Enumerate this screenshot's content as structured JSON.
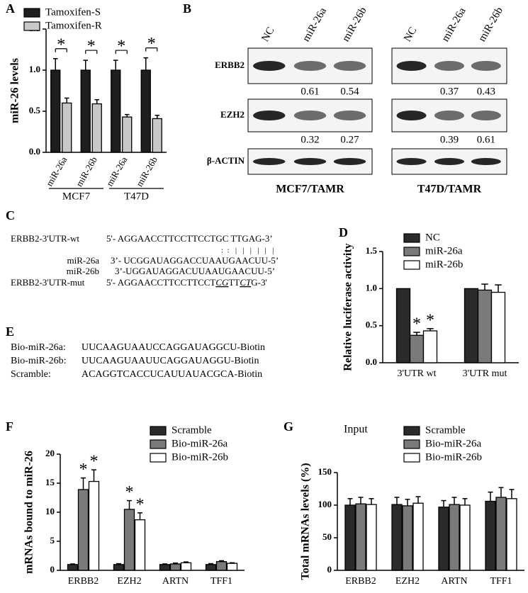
{
  "panel_labels": [
    "A",
    "B",
    "C",
    "D",
    "E",
    "F",
    "G"
  ],
  "chart_data": [
    {
      "type": "bar",
      "ylabel": "miR-26 levels",
      "categories": [
        "miR-26a",
        "miR-26b",
        "miR-26a",
        "miR-26b"
      ],
      "groups": [
        "MCF7",
        "T47D"
      ],
      "ylim": [
        0,
        1.5
      ],
      "yticks": [
        {
          "value": 0,
          "label": "0.0"
        },
        {
          "value": 0.5,
          "label": "0.5"
        },
        {
          "value": 1,
          "label": "1.0"
        },
        {
          "value": 1.5,
          "label": "1.5"
        }
      ],
      "series": [
        {
          "name": "Tamoxifen-S",
          "color": "#1e1e1e",
          "values": [
            1.0,
            1.0,
            1.0,
            1.0
          ],
          "errors": [
            0.14,
            0.12,
            0.12,
            0.15
          ]
        },
        {
          "name": "Tamoxifen-R",
          "color": "#c8c8c8",
          "values": [
            0.6,
            0.59,
            0.43,
            0.41
          ],
          "errors": [
            0.06,
            0.05,
            0.03,
            0.04
          ]
        }
      ],
      "brackets": [
        "*",
        "*",
        "*",
        "*"
      ]
    },
    {
      "type": "bar",
      "ylabel": "Relative luciferase activity",
      "categories": [
        "3'UTR wt",
        "3'UTR mut"
      ],
      "ylim": [
        0,
        1.5
      ],
      "yticks": [
        {
          "value": 0,
          "label": "0.0"
        },
        {
          "value": 0.5,
          "label": "0.5"
        },
        {
          "value": 1,
          "label": "1.0"
        },
        {
          "value": 1.5,
          "label": "1.5"
        }
      ],
      "series": [
        {
          "name": "NC",
          "color": "#2b2b2b",
          "values": [
            1.0,
            1.0
          ],
          "errors": [
            0,
            0
          ]
        },
        {
          "name": "miR-26a",
          "color": "#7a7a7a",
          "values": [
            0.37,
            0.98
          ],
          "errors": [
            0.04,
            0.08
          ],
          "annotations": [
            "*",
            null
          ]
        },
        {
          "name": "miR-26b",
          "color": "#ffffff",
          "values": [
            0.43,
            0.95
          ],
          "errors": [
            0.03,
            0.1
          ],
          "annotations": [
            "*",
            null
          ]
        }
      ]
    },
    {
      "type": "bar",
      "ylabel": "mRNAs bound to miR-26",
      "categories": [
        "ERBB2",
        "EZH2",
        "ARTN",
        "TFF1"
      ],
      "ylim": [
        0,
        20
      ],
      "yticks": [
        0,
        5,
        10,
        15,
        20
      ],
      "series": [
        {
          "name": "Scramble",
          "color": "#2b2b2b",
          "values": [
            1.0,
            1.0,
            1.0,
            1.0
          ],
          "errors": [
            0.1,
            0.15,
            0.1,
            0.15
          ]
        },
        {
          "name": "Bio-miR-26a",
          "color": "#7a7a7a",
          "values": [
            13.9,
            10.5,
            1.1,
            1.5
          ],
          "errors": [
            2.0,
            1.5,
            0.15,
            0.15
          ],
          "annotations": [
            "*",
            "*",
            null,
            null
          ]
        },
        {
          "name": "Bio-miR-26b",
          "color": "#ffffff",
          "values": [
            15.3,
            8.7,
            1.3,
            1.2
          ],
          "errors": [
            2.0,
            1.2,
            0.15,
            0.1
          ],
          "annotations": [
            "*",
            "*",
            null,
            null
          ]
        }
      ]
    },
    {
      "type": "bar",
      "title": "Input",
      "ylabel": "Total mRNAs levels (%)",
      "categories": [
        "ERBB2",
        "EZH2",
        "ARTN",
        "TFF1"
      ],
      "ylim": [
        0,
        150
      ],
      "yticks": [
        0,
        50,
        100,
        150
      ],
      "series": [
        {
          "name": "Scramble",
          "color": "#2b2b2b",
          "values": [
            100,
            101,
            97,
            106
          ],
          "errors": [
            10,
            11,
            10,
            14
          ]
        },
        {
          "name": "Bio-miR-26a",
          "color": "#7a7a7a",
          "values": [
            102,
            99,
            101,
            112
          ],
          "errors": [
            10,
            10,
            11,
            15
          ]
        },
        {
          "name": "Bio-miR-26b",
          "color": "#ffffff",
          "values": [
            101,
            103,
            100,
            110
          ],
          "errors": [
            9,
            10,
            10,
            14
          ]
        }
      ]
    }
  ],
  "blots": {
    "proteins": [
      "ERBB2",
      "EZH2",
      "β-ACTIN"
    ],
    "panels": [
      {
        "cell": "MCF7/TAMR",
        "lanes": [
          "NC",
          "miR-26a",
          "miR-26b"
        ],
        "ratios": [
          [
            0.61,
            0.54
          ],
          [
            0.32,
            0.27
          ]
        ]
      },
      {
        "cell": "T47D/TAMR",
        "lanes": [
          "NC",
          "miR-26a",
          "miR-26b"
        ],
        "ratios": [
          [
            0.37,
            0.43
          ],
          [
            0.39,
            0.61
          ]
        ]
      }
    ]
  },
  "alignment": {
    "wt": {
      "name": "ERBB2-3'UTR-wt",
      "seq": "5'- AGGAACCTTCCTTCCTGC  TTGAG-3’"
    },
    "pairing": ":  :   |   |   |   |   |   |",
    "mirnas": [
      {
        "name": "miR-26a",
        "seq": "3’- UCGGAUAGGACCUAAUGAACUU-5’"
      },
      {
        "name": "miR-26b",
        "seq": "3’-UGGAUAGGACUUAAUGAACUU-5’"
      }
    ],
    "mut": {
      "name": "ERBB2-3'UTR-mut",
      "parts": [
        {
          "text": "5'- AGGAACCTTCCTTCCT"
        },
        {
          "text": "CG",
          "mutated": true
        },
        {
          "text": "TT"
        },
        {
          "text": "CT",
          "mutated": true
        },
        {
          "text": "G-3'"
        }
      ]
    }
  },
  "probes": [
    {
      "name": "Bio-miR-26a:",
      "seq": "UUCAAGUAAUCCAGGAUAGGCU-Biotin"
    },
    {
      "name": "Bio-miR-26b:",
      "seq": "UUCAAGUAAUUCAGGAUAGGU-Biotin"
    },
    {
      "name": "Scramble:",
      "seq": "ACAGGTCACCUCAUUAUACGCA-Biotin"
    }
  ]
}
